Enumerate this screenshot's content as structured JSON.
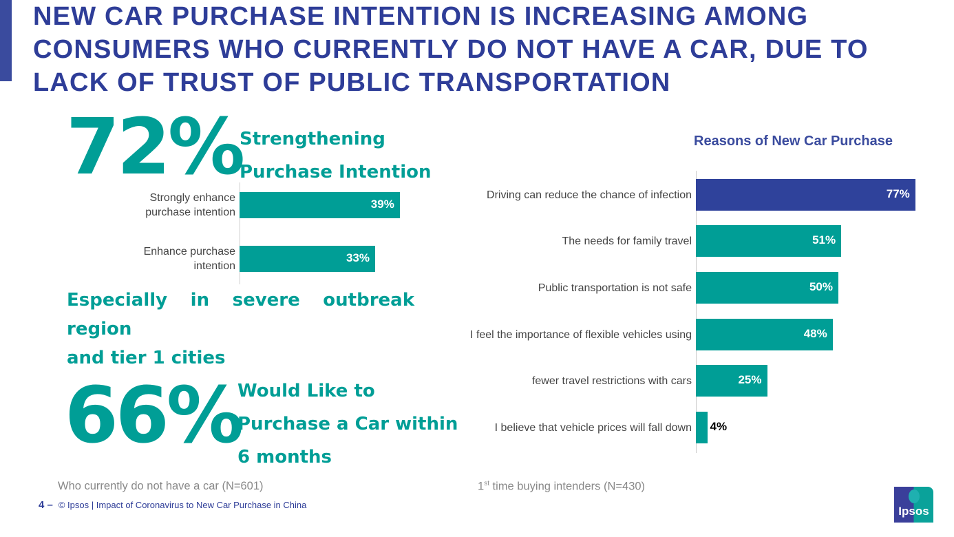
{
  "title": "NEW CAR PURCHASE INTENTION IS INCREASING AMONG CONSUMERS WHO CURRENTLY DO NOT HAVE A CAR, DUE TO LACK OF TRUST OF PUBLIC TRANSPORTATION",
  "stat1": {
    "value": "72%",
    "label_line1": "Strengthening",
    "label_line2": "Purchase Intention"
  },
  "subhead": {
    "line1": "Especially in severe outbreak region",
    "line2": "and tier 1 cities"
  },
  "stat2": {
    "value": "66%",
    "label_line1": "Would Like to",
    "label_line2": "Purchase a Car within",
    "label_line3": "6 months"
  },
  "left_base": "Who currently do not have a car (N=601)",
  "right_base": {
    "sup": "st",
    "prefix": "1",
    "text": " time buying intenders (N=430)"
  },
  "footer": {
    "page": "4 –",
    "text": "© Ipsos | Impact of Coronavirus to New Car Purchase in China"
  },
  "logo_text": "Ipsos",
  "colors": {
    "navy": "#2e3d98",
    "teal": "#009e96",
    "highlight_bar": "#2f429b"
  },
  "chart_data": [
    {
      "type": "bar",
      "orientation": "horizontal",
      "categories": [
        "Strongly enhance purchase intention",
        "Enhance purchase intention"
      ],
      "values": [
        39,
        33
      ],
      "labels": [
        "39%",
        "33%"
      ],
      "xlim": [
        0,
        100
      ],
      "grid": false
    },
    {
      "type": "bar",
      "orientation": "horizontal",
      "title": "Reasons of New Car Purchase",
      "categories": [
        "Driving can reduce the chance of infection",
        "The needs for family travel",
        "Public transportation is not safe",
        "I feel the importance of flexible vehicles using",
        "fewer travel restrictions with cars",
        "I believe that vehicle prices will fall down"
      ],
      "values": [
        77,
        51,
        50,
        48,
        25,
        4
      ],
      "labels": [
        "77%",
        "51%",
        "50%",
        "48%",
        "25%",
        "4%"
      ],
      "highlight_index": 0,
      "xlim": [
        0,
        100
      ],
      "grid": false
    }
  ]
}
